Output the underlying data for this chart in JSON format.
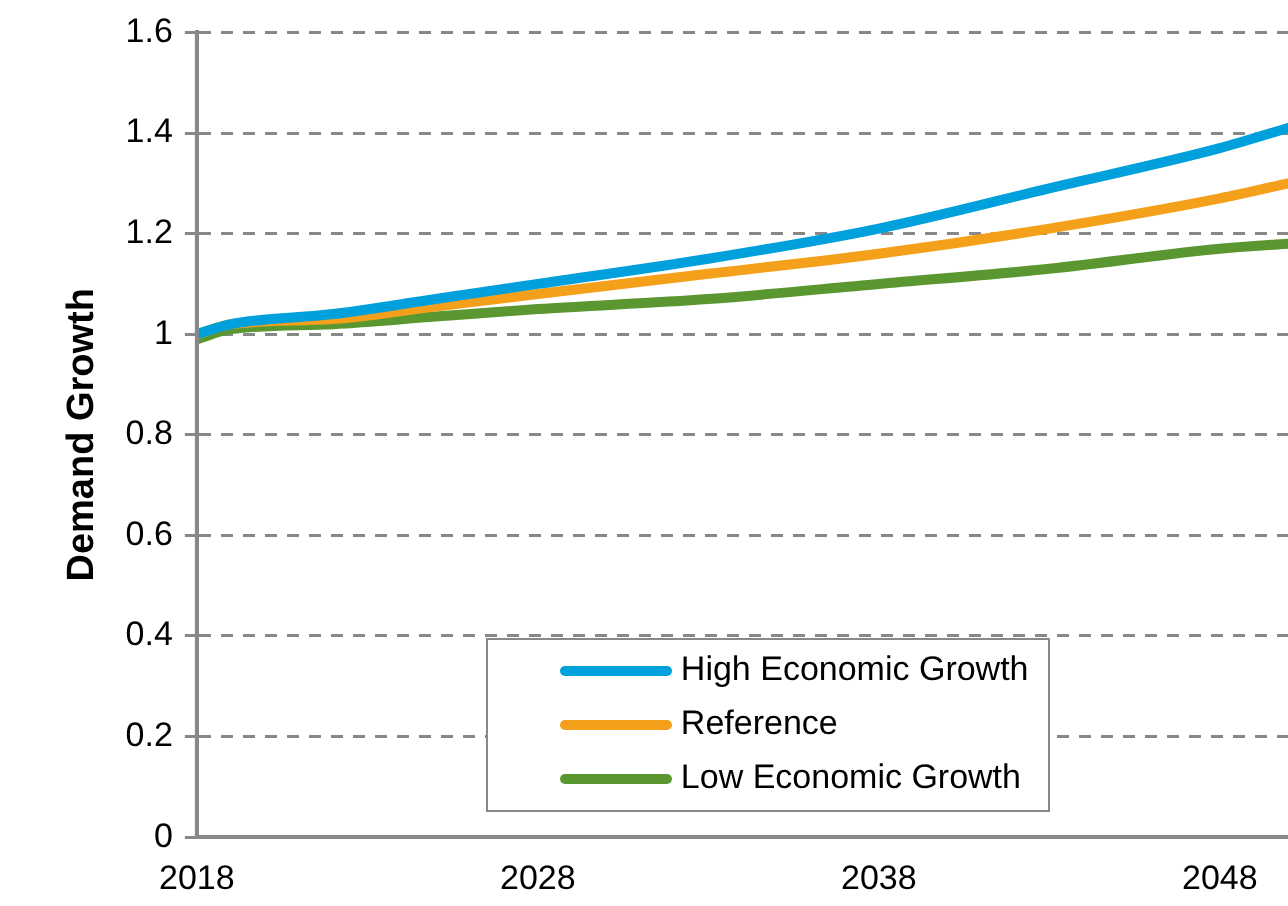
{
  "chart_data": {
    "type": "line",
    "ylabel": "Demand Growth",
    "x": [
      2018,
      2019,
      2022,
      2025,
      2028,
      2033,
      2038,
      2043,
      2048,
      2050
    ],
    "series": [
      {
        "name": "High Economic Growth",
        "color": "#00a0dd",
        "values": [
          1.0,
          1.02,
          1.04,
          1.07,
          1.1,
          1.15,
          1.21,
          1.29,
          1.37,
          1.41
        ]
      },
      {
        "name": "Reference",
        "color": "#f5a01a",
        "values": [
          1.0,
          1.02,
          1.03,
          1.055,
          1.08,
          1.12,
          1.16,
          1.21,
          1.27,
          1.3
        ]
      },
      {
        "name": "Low Economic Growth",
        "color": "#5b9731",
        "values": [
          0.99,
          1.01,
          1.02,
          1.035,
          1.05,
          1.07,
          1.1,
          1.13,
          1.17,
          1.18
        ]
      }
    ],
    "xlim": [
      2018,
      2050
    ],
    "xticks": [
      2018,
      2028,
      2038,
      2048
    ],
    "ylim": [
      0,
      1.6
    ],
    "yticks": [
      0,
      0.2,
      0.4,
      0.6,
      0.8,
      1,
      1.2,
      1.4,
      1.6
    ],
    "grid": "y",
    "legend": "bottom",
    "marker": "none",
    "line_style": "solid"
  }
}
